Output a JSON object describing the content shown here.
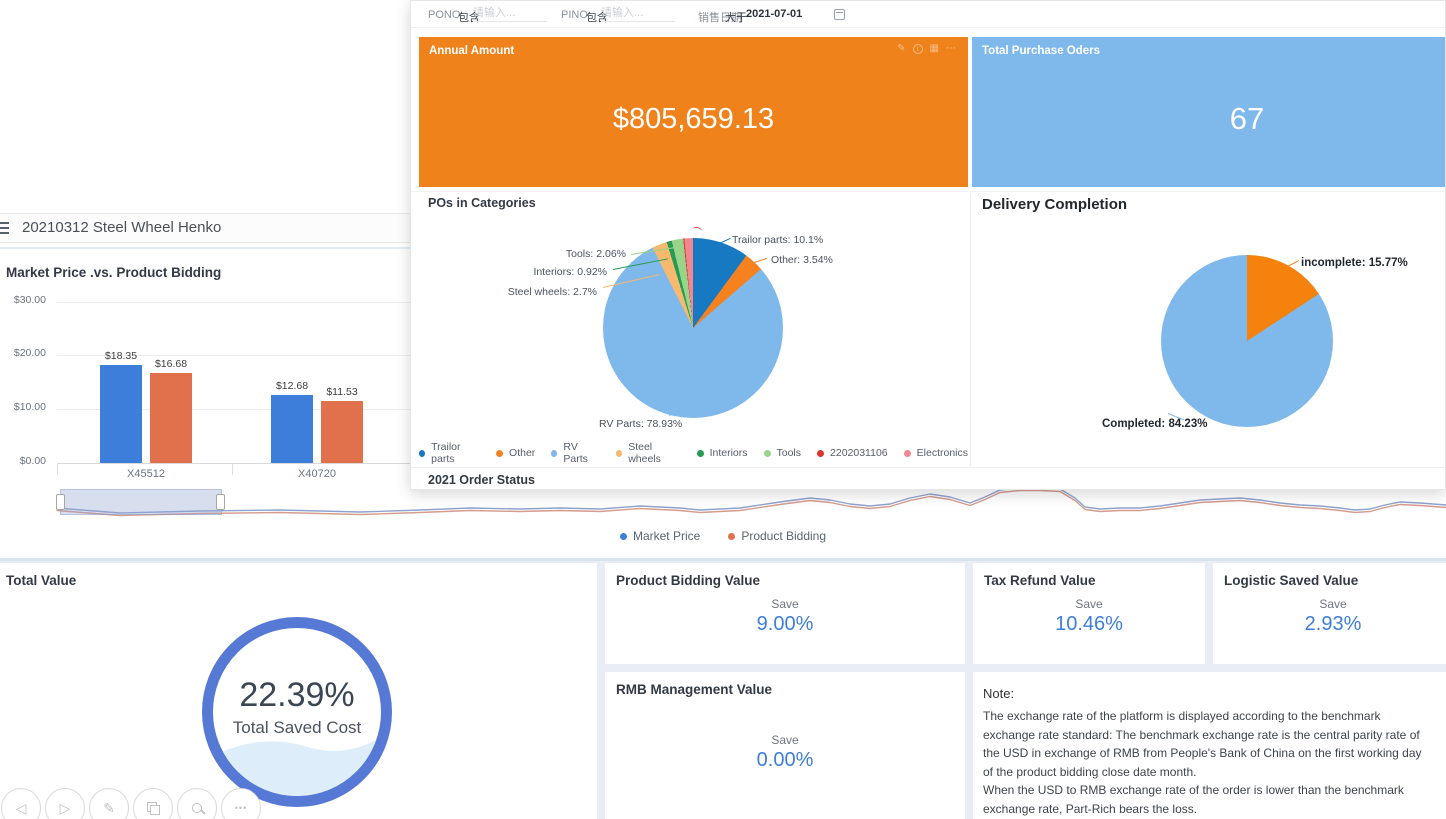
{
  "overlay": {
    "filters": {
      "pono": {
        "label": "PONO",
        "operator": "包含",
        "placeholder": "请输入..."
      },
      "pino": {
        "label": "PINO",
        "operator": "包含",
        "placeholder": "请输入..."
      },
      "sales_date": {
        "label": "销售日期",
        "operator": "大于",
        "value": "2021-07-01"
      }
    },
    "kpis": [
      {
        "title": "Annual Amount",
        "value": "$805,659.13",
        "bg": "#F0821C"
      },
      {
        "title": "Total Purchase Oders",
        "value": "67",
        "bg": "#7FB8EA"
      }
    ],
    "pos_title": "POs in Categories",
    "delivery_title": "Delivery Completion",
    "order_status_title": "2021 Order Status"
  },
  "window": {
    "title": "20210312 Steel Wheel Henko",
    "chart_title": "Market Price .vs. Product Bidding",
    "legend": [
      {
        "label": "Market Price",
        "color": "#3D7EDB"
      },
      {
        "label": "Product Bidding",
        "color": "#E0714C"
      }
    ]
  },
  "bottom": {
    "total_value": {
      "title": "Total Value",
      "percent": "22.39%",
      "caption": "Total Saved Cost"
    },
    "cards": [
      {
        "title": "Product Bidding Value",
        "save_label": "Save",
        "value": "9.00%"
      },
      {
        "title": "Tax Refund Value",
        "save_label": "Save",
        "value": "10.46%"
      },
      {
        "title": "Logistic Saved Value",
        "save_label": "Save",
        "value": "2.93%"
      },
      {
        "title": "RMB Management Value",
        "save_label": "Save",
        "value": "0.00%"
      }
    ],
    "note": {
      "title": "Note:",
      "paragraphs": [
        "The exchange rate of the platform is displayed according to the benchmark exchange rate standard: The benchmark exchange rate is the central parity rate of the USD in exchange of RMB from People's Bank of China on the first working day of the product bidding close date month.",
        "When the USD to RMB exchange rate of the order is lower than the benchmark exchange rate, Part-Rich bears the loss."
      ]
    }
  },
  "chart_data": [
    {
      "type": "bar",
      "title": "Market Price .vs. Product Bidding",
      "categories": [
        "X45512",
        "X40720"
      ],
      "series": [
        {
          "name": "Market Price",
          "color": "#3D7EDB",
          "values": [
            18.35,
            12.68
          ],
          "labels": [
            "$18.35",
            "$12.68"
          ]
        },
        {
          "name": "Product Bidding",
          "color": "#E0714C",
          "values": [
            16.68,
            11.53
          ],
          "labels": [
            "$16.68",
            "$11.53"
          ]
        }
      ],
      "ylim": [
        0,
        30
      ],
      "yticks": [
        "$30.00",
        "$20.00",
        "$10.00",
        "$0.00"
      ],
      "grid": true,
      "legend_position": "bottom"
    },
    {
      "type": "pie",
      "title": "POs in Categories",
      "slices": [
        {
          "name": "Trailor parts",
          "value": 10.1,
          "label": "Trailor parts: 10.1%",
          "color": "#1779C1"
        },
        {
          "name": "Other",
          "value": 3.54,
          "label": "Other: 3.54%",
          "color": "#F5821F"
        },
        {
          "name": "RV Parts",
          "value": 78.93,
          "label": "RV Parts: 78.93%",
          "color": "#7FB8EA"
        },
        {
          "name": "Steel wheels",
          "value": 2.7,
          "label": "Steel wheels: 2.7%",
          "color": "#F7B96D"
        },
        {
          "name": "Interiors",
          "value": 0.92,
          "label": "Interiors: 0.92%",
          "color": "#259B54"
        },
        {
          "name": "Tools",
          "value": 2.06,
          "label": "Tools: 2.06%",
          "color": "#98D489"
        },
        {
          "name": "2202031106",
          "value": 0.2,
          "label": "",
          "color": "#DC3430"
        },
        {
          "name": "Electronics",
          "value": 1.55,
          "label": "",
          "color": "#F2878F"
        }
      ]
    },
    {
      "type": "pie",
      "title": "Delivery Completion",
      "slices": [
        {
          "name": "incomplete",
          "value": 15.77,
          "label": "incomplete: 15.77%",
          "color": "#F5820D"
        },
        {
          "name": "Completed",
          "value": 84.23,
          "label": "Completed: 84.23%",
          "color": "#7FB8EA"
        }
      ]
    }
  ]
}
